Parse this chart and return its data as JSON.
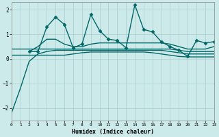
{
  "title": "",
  "xlabel": "Humidex (Indice chaleur)",
  "bg_color": "#cceaea",
  "grid_color": "#aacccc",
  "line_color": "#006666",
  "xlim": [
    0,
    23
  ],
  "ylim": [
    -2.5,
    2.3
  ],
  "yticks": [
    -2,
    -1,
    0,
    1,
    2
  ],
  "xticks": [
    0,
    1,
    2,
    3,
    4,
    5,
    6,
    7,
    8,
    9,
    10,
    11,
    12,
    13,
    14,
    15,
    16,
    17,
    18,
    19,
    20,
    21,
    22,
    23
  ],
  "series": [
    {
      "x": [
        0,
        1,
        2,
        3,
        4,
        5,
        6,
        7,
        8,
        9,
        10,
        11,
        12,
        13,
        14,
        15,
        16,
        17,
        18,
        19,
        20,
        21,
        22,
        23
      ],
      "y": [
        -2.2,
        -1.2,
        -0.1,
        0.2,
        0.3,
        0.35,
        0.35,
        0.35,
        0.35,
        0.35,
        0.35,
        0.35,
        0.35,
        0.35,
        0.35,
        0.35,
        0.35,
        0.35,
        0.3,
        0.25,
        0.2,
        0.2,
        0.2,
        0.2
      ],
      "marker": null,
      "lw": 1.0
    },
    {
      "x": [
        0,
        1,
        2,
        3,
        4,
        5,
        6,
        7,
        8,
        9,
        10,
        11,
        12,
        13,
        14,
        15,
        16,
        17,
        18,
        19,
        20,
        21,
        22,
        23
      ],
      "y": [
        0.4,
        0.4,
        0.4,
        0.4,
        0.4,
        0.4,
        0.4,
        0.4,
        0.4,
        0.4,
        0.4,
        0.4,
        0.4,
        0.4,
        0.4,
        0.4,
        0.4,
        0.4,
        0.4,
        0.35,
        0.3,
        0.3,
        0.3,
        0.3
      ],
      "marker": null,
      "lw": 1.0
    },
    {
      "x": [
        0,
        1,
        2,
        3,
        4,
        5,
        6,
        7,
        8,
        9,
        10,
        11,
        12,
        13,
        14,
        15,
        16,
        17,
        18,
        19,
        20,
        21,
        22,
        23
      ],
      "y": [
        0.15,
        0.15,
        0.15,
        0.15,
        0.15,
        0.15,
        0.15,
        0.2,
        0.25,
        0.28,
        0.28,
        0.28,
        0.28,
        0.28,
        0.28,
        0.28,
        0.25,
        0.2,
        0.15,
        0.1,
        0.08,
        0.08,
        0.08,
        0.08
      ],
      "marker": null,
      "lw": 1.0
    },
    {
      "x": [
        2,
        3,
        4,
        5,
        6,
        7,
        8,
        9,
        10,
        11,
        12,
        13,
        14,
        15,
        16,
        17,
        18,
        19,
        20,
        21,
        22,
        23
      ],
      "y": [
        0.3,
        0.3,
        1.3,
        1.7,
        1.4,
        0.45,
        0.6,
        1.8,
        1.15,
        0.8,
        0.75,
        0.45,
        2.2,
        1.2,
        1.1,
        0.7,
        0.5,
        0.35,
        0.1,
        0.75,
        0.65,
        0.7
      ],
      "marker": "D",
      "lw": 1.0
    },
    {
      "x": [
        2,
        3,
        4,
        5,
        6,
        7,
        8,
        9,
        10,
        11,
        12,
        13,
        14,
        15,
        16,
        17,
        18,
        19,
        20,
        21,
        22,
        23
      ],
      "y": [
        0.3,
        0.5,
        0.8,
        0.8,
        0.6,
        0.5,
        0.5,
        0.6,
        0.65,
        0.65,
        0.65,
        0.65,
        0.65,
        0.65,
        0.65,
        0.65,
        0.6,
        0.5,
        0.4,
        0.4,
        0.4,
        0.5
      ],
      "marker": null,
      "lw": 1.0
    }
  ]
}
